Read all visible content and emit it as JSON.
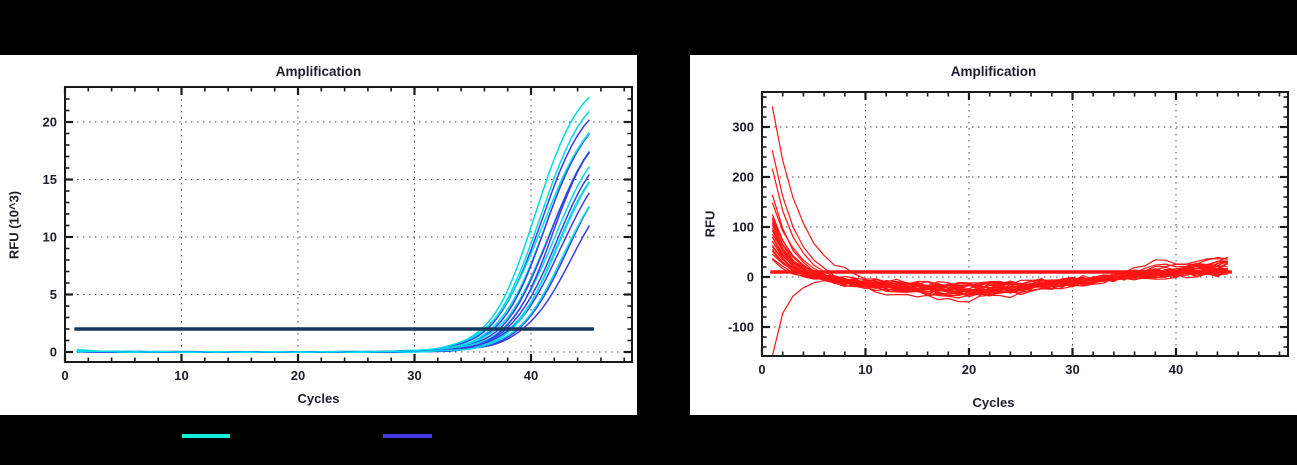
{
  "page": {
    "background": "#000000"
  },
  "colors": {
    "cyan_curve": "#00dce8",
    "blue_curve": "#3d3de0",
    "red_curve": "#ff1414",
    "threshold_navy": "#17375e",
    "threshold_red": "#ff1414",
    "axis": "#1a1a1a",
    "grid": "#4a4a4a",
    "text": "#1d1e2a",
    "panel_bg": "#ffffff"
  },
  "legend": {
    "items": [
      {
        "name": "cyan-series-swatch",
        "color": "#12f0dc"
      },
      {
        "name": "blue-series-swatch",
        "color": "#4439e5"
      }
    ]
  },
  "chart_data": [
    {
      "type": "line",
      "title": "Amplification",
      "xlabel": "Cycles",
      "ylabel": "RFU (10^3)",
      "x_major_ticks": [
        0,
        10,
        20,
        30,
        40
      ],
      "x_minor_step": 2,
      "x_minor_max": 48,
      "x_axis_range": [
        0,
        48.7
      ],
      "y_major_ticks": [
        0,
        5,
        10,
        15,
        20
      ],
      "y_minor_step": 1,
      "y_minor_range": [
        0,
        22
      ],
      "y_axis_range": [
        -0.9,
        23.0
      ],
      "grid": "dotted at major ticks",
      "legend_position": "below-chart",
      "data_x_range": [
        1,
        45
      ],
      "threshold": {
        "value": 2,
        "x_from": 0.8,
        "x_to": 45.4,
        "color": "#17375e"
      },
      "series_model": "sigmoid: y = base0*exp(-(x-1)/2.5) + 1.113*end_rfu/(1+exp(-k*(x-mid)))",
      "series": [
        {
          "color": "cyan",
          "end_rfu": 21.7,
          "mid": 40.4,
          "k": 0.52,
          "base0": 0.18
        },
        {
          "color": "cyan",
          "end_rfu": 21.1,
          "mid": 40.8,
          "k": 0.5,
          "base0": 0.15
        },
        {
          "color": "blue",
          "end_rfu": 20.5,
          "mid": 40.9,
          "k": 0.5,
          "base0": 0.05
        },
        {
          "color": "cyan",
          "end_rfu": 20.0,
          "mid": 41.3,
          "k": 0.49,
          "base0": 0.12
        },
        {
          "color": "blue",
          "end_rfu": 19.4,
          "mid": 41.2,
          "k": 0.52,
          "base0": 0.04
        },
        {
          "color": "cyan",
          "end_rfu": 18.9,
          "mid": 41.7,
          "k": 0.48,
          "base0": 0.1
        },
        {
          "color": "blue",
          "end_rfu": 18.3,
          "mid": 41.6,
          "k": 0.51,
          "base0": 0.05
        },
        {
          "color": "cyan",
          "end_rfu": 17.8,
          "mid": 42.0,
          "k": 0.49,
          "base0": 0.08
        },
        {
          "color": "blue",
          "end_rfu": 17.3,
          "mid": 42.2,
          "k": 0.5,
          "base0": 0.04
        },
        {
          "color": "cyan",
          "end_rfu": 16.9,
          "mid": 42.4,
          "k": 0.5,
          "base0": 0.1
        },
        {
          "color": "blue",
          "end_rfu": 16.4,
          "mid": 42.6,
          "k": 0.48,
          "base0": 0.03
        },
        {
          "color": "cyan",
          "end_rfu": 16.0,
          "mid": 42.1,
          "k": 0.55,
          "base0": 0.06
        },
        {
          "color": "blue",
          "end_rfu": 15.5,
          "mid": 43.0,
          "k": 0.5,
          "base0": 0.04
        },
        {
          "color": "blue",
          "end_rfu": 14.7,
          "mid": 43.5,
          "k": 0.47,
          "base0": 0.03
        },
        {
          "color": "cyan",
          "end_rfu": 19.8,
          "mid": 41.0,
          "k": 0.46,
          "base0": 0.14
        },
        {
          "color": "blue",
          "end_rfu": 18.7,
          "mid": 41.9,
          "k": 0.53,
          "base0": 0.04
        },
        {
          "color": "cyan",
          "end_rfu": 15.2,
          "mid": 42.8,
          "k": 0.5,
          "base0": 0.07
        }
      ]
    },
    {
      "type": "line",
      "title": "Amplification",
      "xlabel": "Cycles",
      "ylabel": "RFU",
      "x_major_ticks": [
        0,
        10,
        20,
        30,
        40
      ],
      "x_minor_step": 2,
      "x_minor_max": 50,
      "x_axis_range": [
        0,
        50.8
      ],
      "y_major_ticks": [
        -100,
        0,
        100,
        200,
        300
      ],
      "y_minor_step": 20,
      "y_minor_range": [
        -140,
        360
      ],
      "y_axis_range": [
        -158,
        370
      ],
      "grid": "dotted at major ticks",
      "data_x_range": [
        1,
        45
      ],
      "threshold": {
        "value": 10,
        "x_from": 0.8,
        "x_to": 45.4,
        "color": "#ff1414"
      },
      "series_model": "decay-dip-recover: y = start*exp(-(x-1)/tau) - dip*gauss((x-19)/8.5) + end*clamp((x-26)/19)^2 + bump*gauss((x-38)/1.3) + noise",
      "noise_seed": 1234,
      "series": [
        {
          "start": 345,
          "tau": 2.6,
          "dip": 18,
          "end": 22,
          "bump": 10
        },
        {
          "start": 258,
          "tau": 2.2,
          "dip": 25,
          "end": 30,
          "bump": 4
        },
        {
          "start": 222,
          "tau": 2.1,
          "dip": 30,
          "end": 14,
          "bump": 0
        },
        {
          "start": 168,
          "tau": 2.0,
          "dip": 45,
          "end": 8,
          "bump": 0
        },
        {
          "start": 152,
          "tau": 2.3,
          "dip": 38,
          "end": 18,
          "bump": 6
        },
        {
          "start": 130,
          "tau": 1.9,
          "dip": 22,
          "end": 35,
          "bump": 12
        },
        {
          "start": 124,
          "tau": 2.0,
          "dip": 28,
          "end": 25,
          "bump": 0
        },
        {
          "start": 118,
          "tau": 1.8,
          "dip": 35,
          "end": 12,
          "bump": 5
        },
        {
          "start": 112,
          "tau": 2.1,
          "dip": 20,
          "end": 28,
          "bump": 0
        },
        {
          "start": 106,
          "tau": 1.9,
          "dip": 26,
          "end": 20,
          "bump": 8
        },
        {
          "start": 100,
          "tau": 2.0,
          "dip": 32,
          "end": 16,
          "bump": 0
        },
        {
          "start": 95,
          "tau": 1.7,
          "dip": 24,
          "end": 30,
          "bump": 0
        },
        {
          "start": 90,
          "tau": 2.2,
          "dip": 18,
          "end": 10,
          "bump": 4
        },
        {
          "start": 85,
          "tau": 1.8,
          "dip": 30,
          "end": 24,
          "bump": 0
        },
        {
          "start": 80,
          "tau": 2.0,
          "dip": 15,
          "end": 40,
          "bump": 14
        },
        {
          "start": 76,
          "tau": 1.6,
          "dip": 27,
          "end": 6,
          "bump": 0
        },
        {
          "start": 72,
          "tau": 2.1,
          "dip": 21,
          "end": 18,
          "bump": 0
        },
        {
          "start": 68,
          "tau": 1.9,
          "dip": 34,
          "end": 14,
          "bump": 6
        },
        {
          "start": 63,
          "tau": 1.7,
          "dip": 16,
          "end": 26,
          "bump": 0
        },
        {
          "start": 58,
          "tau": 2.0,
          "dip": 29,
          "end": 9,
          "bump": 0
        },
        {
          "start": 52,
          "tau": 1.8,
          "dip": 23,
          "end": 33,
          "bump": 9
        },
        {
          "start": 46,
          "tau": 2.1,
          "dip": 19,
          "end": 15,
          "bump": 0
        },
        {
          "start": 40,
          "tau": 1.9,
          "dip": 26,
          "end": 21,
          "bump": 0
        },
        {
          "start": 34,
          "tau": 1.6,
          "dip": 14,
          "end": 38,
          "bump": 0
        },
        {
          "start": -155,
          "tau": 1.3,
          "dip": 20,
          "end": 12,
          "bump": 0
        }
      ]
    }
  ]
}
